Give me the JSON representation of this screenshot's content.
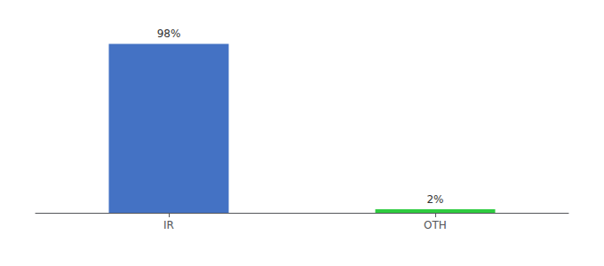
{
  "chart_data": {
    "type": "bar",
    "categories": [
      "IR",
      "OTH"
    ],
    "values": [
      98,
      2
    ],
    "value_labels": [
      "98%",
      "2%"
    ],
    "data_labels": true,
    "colors": [
      "#4472C4",
      "#2ECC40"
    ],
    "ylim": [
      0,
      108
    ],
    "tick_labels": "x",
    "grid": false
  }
}
